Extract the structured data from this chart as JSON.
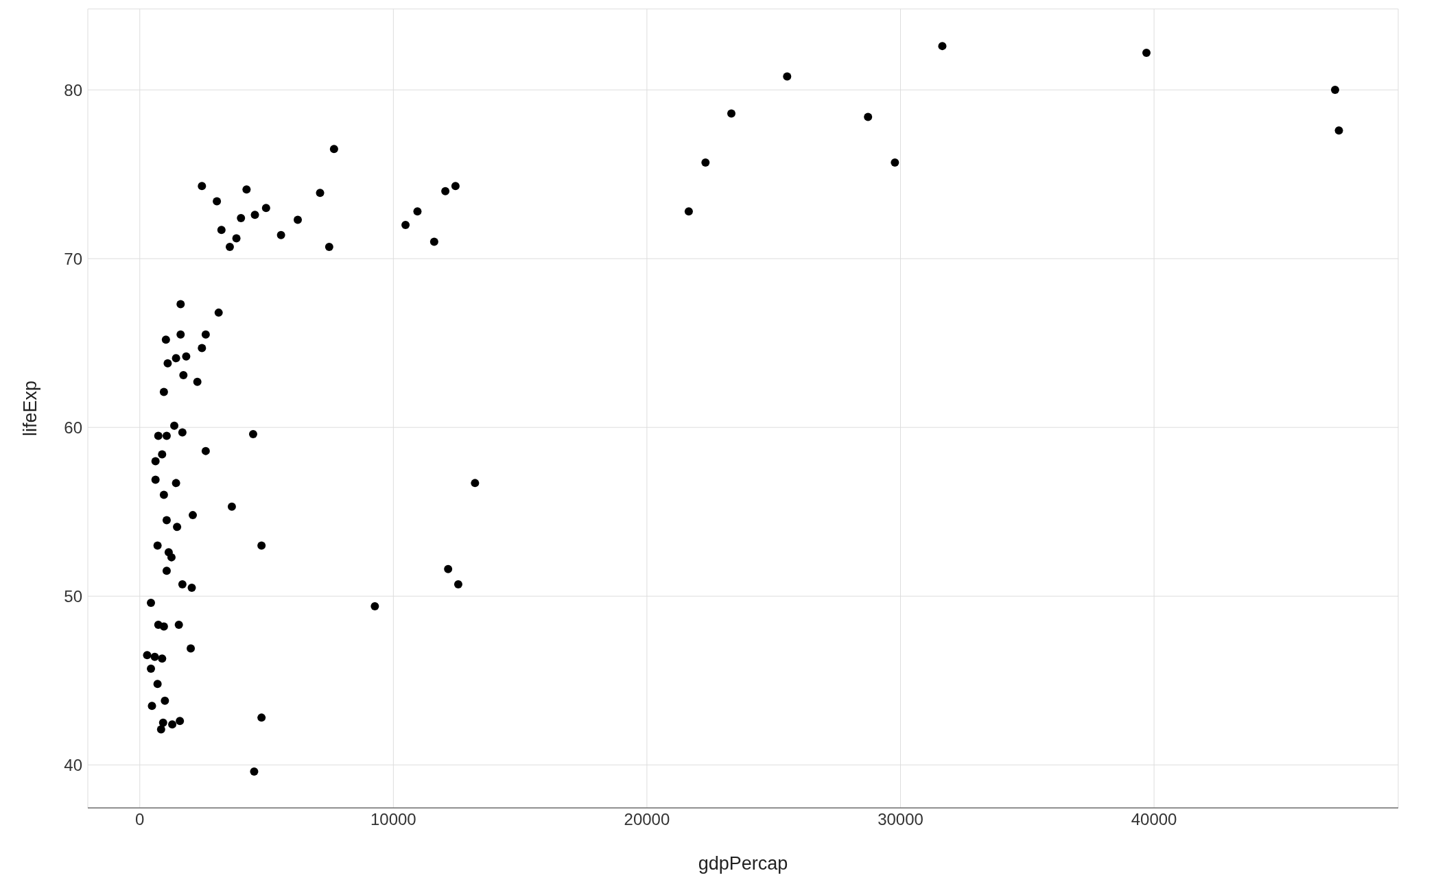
{
  "chart_data": {
    "type": "scatter",
    "xlabel": "gdpPercap",
    "ylabel": "lifeExp",
    "xlim": [
      -2050,
      49630
    ],
    "ylim": [
      37.45,
      84.8
    ],
    "xticks": [
      0,
      10000,
      20000,
      30000,
      40000
    ],
    "yticks": [
      40,
      50,
      60,
      70,
      80
    ],
    "grid": true,
    "marker": "circle",
    "legend": false,
    "series": [
      {
        "color": "#000000",
        "x": [
          31650,
          39700,
          25530,
          47140,
          47290,
          23330,
          28720,
          22310,
          29780,
          21650,
          7660,
          2450,
          3040,
          4210,
          7110,
          4980,
          3990,
          4540,
          3220,
          3810,
          3550,
          6230,
          5570,
          7470,
          12050,
          12450,
          10950,
          10480,
          11610,
          1610,
          3110,
          1610,
          2600,
          1030,
          2450,
          1830,
          1430,
          1100,
          1720,
          2270,
          950,
          1360,
          1680,
          730,
          1060,
          4470,
          2600,
          880,
          620,
          620,
          1430,
          13220,
          950,
          3630,
          2090,
          1060,
          1470,
          700,
          4800,
          1140,
          1250,
          1060,
          12160,
          12560,
          1680,
          2050,
          440,
          9270,
          730,
          1540,
          950,
          2010,
          290,
          590,
          880,
          440,
          700,
          990,
          480,
          4800,
          920,
          1580,
          1280,
          840,
          4510
        ],
        "values": [
          82.6,
          82.2,
          80.8,
          80.0,
          77.6,
          78.6,
          78.4,
          75.7,
          75.7,
          72.8,
          76.5,
          74.3,
          73.4,
          74.1,
          73.9,
          73.0,
          72.4,
          72.6,
          71.7,
          71.2,
          70.7,
          72.3,
          71.4,
          70.7,
          74.0,
          74.3,
          72.8,
          72.0,
          71.0,
          67.3,
          66.8,
          65.5,
          65.5,
          65.2,
          64.7,
          64.2,
          64.1,
          63.8,
          63.1,
          62.7,
          62.1,
          60.1,
          59.7,
          59.5,
          59.5,
          59.6,
          58.6,
          58.4,
          58.0,
          56.9,
          56.7,
          56.7,
          56.0,
          55.3,
          54.8,
          54.5,
          54.1,
          53.0,
          53.0,
          52.6,
          52.3,
          51.5,
          51.6,
          50.7,
          50.7,
          50.5,
          49.6,
          49.4,
          48.3,
          48.3,
          48.2,
          46.9,
          46.5,
          46.4,
          46.3,
          45.7,
          44.8,
          43.8,
          43.5,
          42.8,
          42.5,
          42.6,
          42.4,
          42.1,
          39.6
        ]
      }
    ]
  }
}
